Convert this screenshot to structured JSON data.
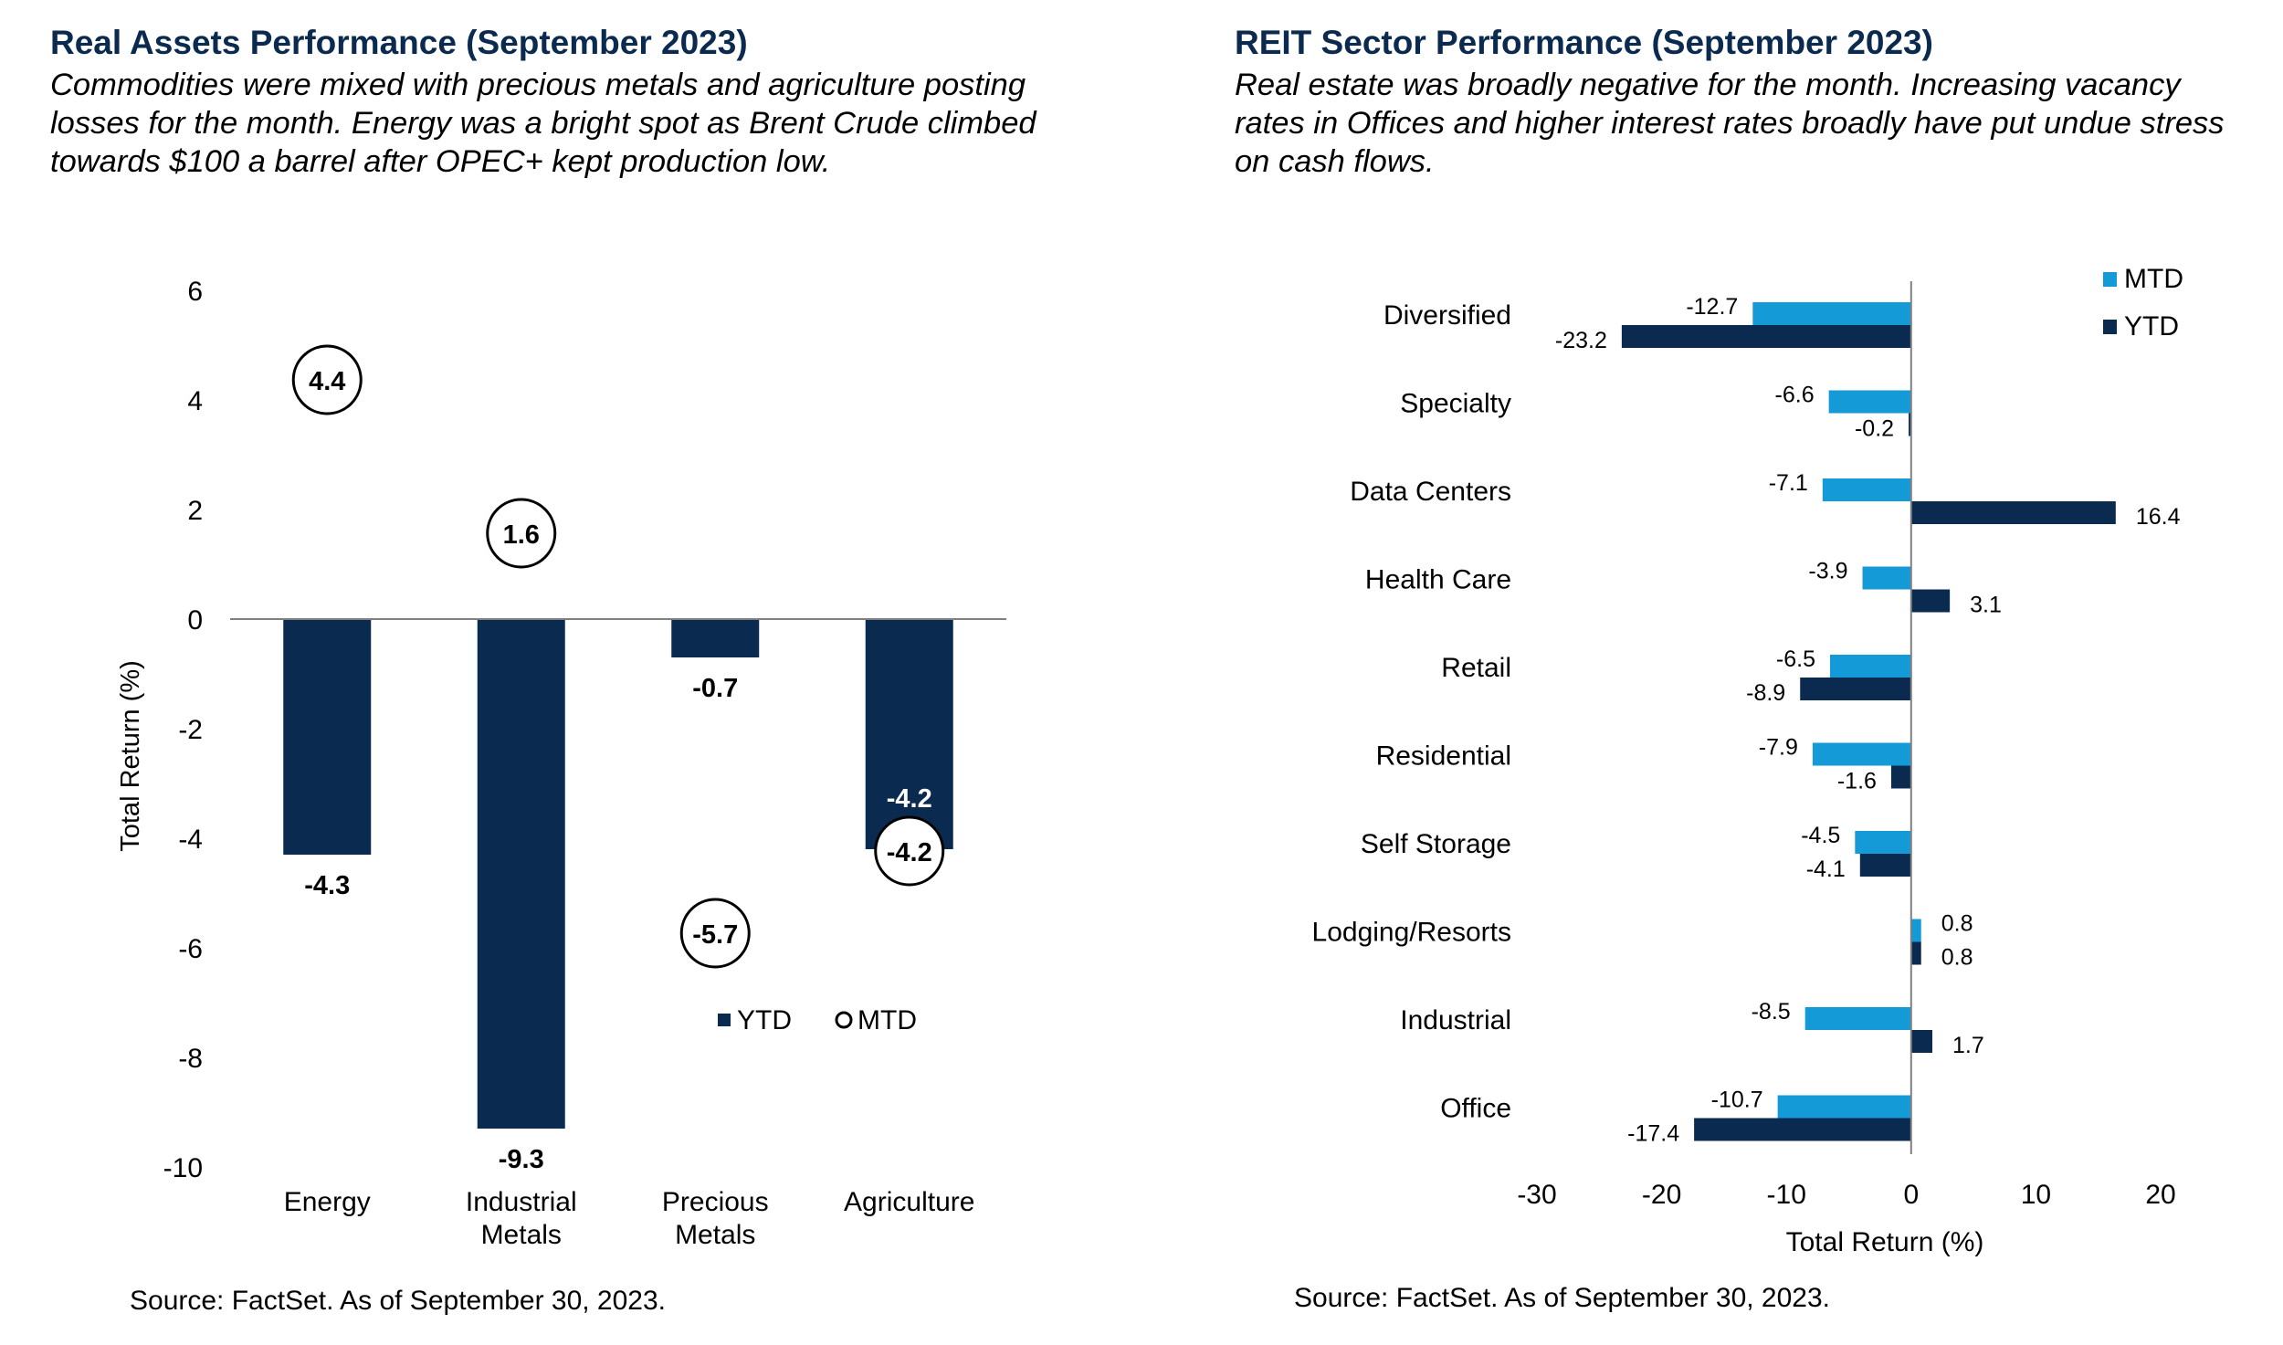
{
  "left_panel": {
    "title": "Real Assets Performance (September 2023)",
    "subtitle_lines": [
      "Commodities were mixed with precious metals and agriculture posting",
      "losses for the month. Energy was a bright spot as Brent Crude climbed",
      "towards $100 a barrel after OPEC+ kept production low."
    ],
    "source": "Source: FactSet. As of September 30, 2023."
  },
  "right_panel": {
    "title": "REIT Sector Performance (September 2023)",
    "subtitle_lines": [
      "Real estate was broadly negative for the month. Increasing vacancy",
      "rates in Offices and higher interest rates broadly have put undue stress",
      "on cash flows."
    ],
    "source": "Source: FactSet. As of September 30, 2023."
  },
  "colors": {
    "navy": "#0b2a4f",
    "light_blue": "#159ad8",
    "title": "#0b2a4f",
    "axis": "#808080"
  },
  "chart_data": [
    {
      "type": "bar",
      "title": "Real Assets Performance (September 2023)",
      "categories": [
        [
          "Energy"
        ],
        [
          "Industrial",
          "Metals"
        ],
        [
          "Precious",
          "Metals"
        ],
        [
          "Agriculture"
        ]
      ],
      "series": [
        {
          "name": "YTD",
          "marker": "bar",
          "values": [
            -4.3,
            -9.3,
            -0.7,
            -4.2
          ],
          "labels": [
            "-4.3",
            "-9.3",
            "-0.7",
            "-4.2"
          ]
        },
        {
          "name": "MTD",
          "marker": "circle",
          "values": [
            4.4,
            1.6,
            -5.7,
            -4.2
          ],
          "labels": [
            "4.4",
            "1.6",
            "-5.7",
            "-4.2"
          ]
        }
      ],
      "ylabel": "Total Return (%)",
      "ylim": [
        -10,
        6
      ],
      "yticks": [
        6,
        4,
        2,
        0,
        -2,
        -4,
        -6,
        -8,
        -10
      ],
      "ytick_labels": [
        "6",
        "4",
        "2",
        "0",
        "-2",
        "-4",
        "-6",
        "-8",
        "-10"
      ],
      "legend_position": "lower-right",
      "legend": [
        "YTD",
        "MTD"
      ]
    },
    {
      "type": "bar",
      "orientation": "horizontal",
      "title": "REIT Sector Performance (September 2023)",
      "categories": [
        "Diversified",
        "Specialty",
        "Data Centers",
        "Health Care",
        "Retail",
        "Residential",
        "Self Storage",
        "Lodging/Resorts",
        "Industrial",
        "Office"
      ],
      "series": [
        {
          "name": "MTD",
          "values": [
            -12.7,
            -6.6,
            -7.1,
            -3.9,
            -6.5,
            -7.9,
            -4.5,
            0.8,
            -8.5,
            -10.7
          ],
          "labels": [
            "-12.7",
            "-6.6",
            "-7.1",
            "-3.9",
            "-6.5",
            "-7.9",
            "-4.5",
            "0.8",
            "-8.5",
            "-10.7"
          ]
        },
        {
          "name": "YTD",
          "values": [
            -23.2,
            -0.2,
            16.4,
            3.1,
            -8.9,
            -1.6,
            -4.1,
            0.8,
            1.7,
            -17.4
          ],
          "labels": [
            "-23.2",
            "-0.2",
            "16.4",
            "3.1",
            "-8.9",
            "-1.6",
            "-4.1",
            "0.8",
            "1.7",
            "-17.4"
          ]
        }
      ],
      "xlabel": "Total Return (%)",
      "xlim": [
        -30,
        20
      ],
      "xticks": [
        -30,
        -20,
        -10,
        0,
        10,
        20
      ],
      "xtick_labels": [
        "-30",
        "-20",
        "-10",
        "0",
        "10",
        "20"
      ],
      "legend_position": "top-right",
      "legend": [
        "MTD",
        "YTD"
      ]
    }
  ]
}
